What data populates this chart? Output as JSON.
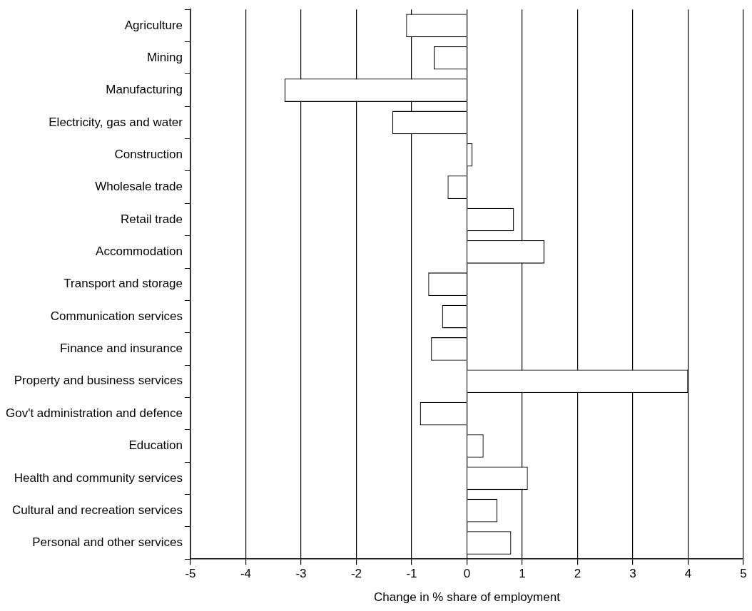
{
  "chart_data": {
    "type": "bar",
    "orientation": "horizontal",
    "xlabel": "Change in % share of employment",
    "categories": [
      "Agriculture",
      "Mining",
      "Manufacturing",
      "Electricity, gas and water",
      "Construction",
      "Wholesale trade",
      "Retail trade",
      "Accommodation",
      "Transport and storage",
      "Communication services",
      "Finance and insurance",
      "Property and business services",
      "Gov't administration and defence",
      "Education",
      "Health and community services",
      "Cultural and recreation services",
      "Personal and other services"
    ],
    "values": [
      -1.1,
      -0.6,
      -3.3,
      -1.35,
      0.1,
      -0.35,
      0.85,
      1.4,
      -0.7,
      -0.45,
      -0.65,
      4.0,
      -0.85,
      0.3,
      1.1,
      0.55,
      0.8
    ],
    "color": "#ffffff",
    "xlim": [
      -5,
      5
    ],
    "xticks": [
      -5,
      -4,
      -3,
      -2,
      -1,
      0,
      1,
      2,
      3,
      4,
      5
    ],
    "grid": "x",
    "legend": false
  }
}
